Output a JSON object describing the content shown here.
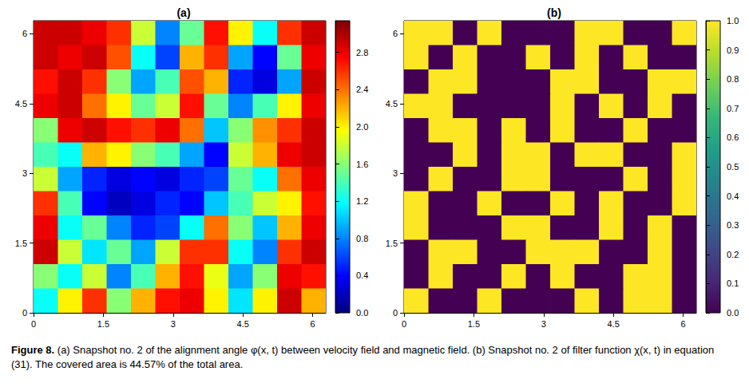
{
  "chart_data": [
    {
      "type": "heatmap",
      "title": "(a)",
      "color": "jet",
      "xlim": [
        0,
        6.283
      ],
      "ylim": [
        0,
        6.283
      ],
      "xticks": [
        0,
        1.5,
        3,
        4.5,
        6
      ],
      "yticks": [
        0,
        1.5,
        3,
        4.5,
        6
      ],
      "x_edges": [
        0,
        0.524,
        1.047,
        1.571,
        2.094,
        2.618,
        3.142,
        3.665,
        4.189,
        4.712,
        5.236,
        5.76,
        6.283
      ],
      "y_edges": [
        0,
        0.524,
        1.047,
        1.571,
        2.094,
        2.618,
        3.142,
        3.665,
        4.189,
        4.712,
        5.236,
        5.76,
        6.283
      ],
      "cells": [
        [
          2.9,
          2.9,
          2.8,
          2.6,
          1.8,
          0.8,
          1.5,
          2.7,
          2.0,
          1.2,
          2.6,
          2.9
        ],
        [
          2.9,
          2.8,
          2.9,
          2.5,
          1.2,
          0.6,
          2.2,
          2.6,
          0.9,
          0.4,
          1.5,
          2.8
        ],
        [
          2.7,
          2.9,
          2.6,
          1.6,
          0.9,
          1.4,
          2.5,
          2.2,
          0.5,
          0.3,
          0.9,
          2.9
        ],
        [
          2.8,
          2.9,
          2.4,
          2.0,
          1.5,
          1.8,
          2.7,
          1.5,
          0.8,
          1.4,
          2.0,
          2.8
        ],
        [
          1.6,
          2.8,
          2.9,
          2.7,
          2.6,
          2.8,
          2.4,
          1.0,
          1.6,
          2.3,
          2.6,
          2.9
        ],
        [
          1.4,
          1.2,
          2.2,
          2.0,
          1.6,
          1.4,
          0.9,
          0.4,
          1.8,
          2.2,
          2.8,
          2.9
        ],
        [
          1.8,
          0.9,
          0.5,
          0.3,
          0.4,
          0.3,
          0.5,
          0.6,
          1.5,
          1.2,
          2.4,
          2.8
        ],
        [
          2.6,
          1.4,
          0.4,
          0.2,
          0.3,
          0.5,
          0.4,
          1.0,
          1.4,
          1.8,
          2.0,
          2.7
        ],
        [
          2.8,
          1.2,
          1.5,
          0.8,
          0.5,
          0.6,
          1.2,
          2.4,
          1.6,
          1.0,
          2.2,
          2.8
        ],
        [
          2.9,
          1.8,
          1.1,
          1.5,
          0.9,
          1.8,
          2.6,
          2.6,
          1.2,
          0.8,
          2.6,
          2.9
        ],
        [
          1.6,
          1.2,
          1.8,
          0.8,
          1.4,
          2.2,
          2.7,
          1.9,
          0.9,
          1.6,
          2.8,
          2.7
        ],
        [
          1.2,
          2.0,
          2.6,
          1.6,
          2.2,
          2.7,
          2.8,
          2.0,
          1.1,
          2.0,
          2.9,
          2.2
        ]
      ],
      "colorbar": {
        "range": [
          0,
          3.14
        ],
        "ticks": [
          {
            "value": 0,
            "label": "0.0"
          },
          0.4,
          0.8,
          1.2,
          1.6,
          {
            "value": 2,
            "label": "2.0"
          },
          2.4,
          2.8
        ]
      }
    },
    {
      "type": "heatmap",
      "title": "(b)",
      "color": "viridis",
      "xlim": [
        0,
        6.283
      ],
      "ylim": [
        0,
        6.283
      ],
      "xticks": [
        0,
        1.5,
        3,
        4.5,
        6
      ],
      "yticks": [
        0,
        1.5,
        3,
        4.5,
        6
      ],
      "x_edges": [
        0,
        0.524,
        1.047,
        1.571,
        2.094,
        2.618,
        3.142,
        3.665,
        4.189,
        4.712,
        5.236,
        5.76,
        6.283
      ],
      "y_edges": [
        0,
        0.524,
        1.047,
        1.571,
        2.094,
        2.618,
        3.142,
        3.665,
        4.189,
        4.712,
        5.236,
        5.76,
        6.283
      ],
      "cells": [
        [
          1,
          1,
          0,
          1,
          0,
          0,
          0,
          1,
          1,
          0,
          0,
          1
        ],
        [
          1,
          0,
          1,
          0,
          0,
          1,
          0,
          1,
          0,
          1,
          0,
          0
        ],
        [
          0,
          1,
          1,
          0,
          0,
          0,
          1,
          1,
          0,
          0,
          1,
          1
        ],
        [
          1,
          1,
          0,
          0,
          0,
          0,
          1,
          0,
          1,
          0,
          1,
          0
        ],
        [
          0,
          1,
          1,
          0,
          1,
          0,
          1,
          0,
          0,
          1,
          0,
          0
        ],
        [
          0,
          0,
          1,
          0,
          1,
          1,
          0,
          1,
          1,
          0,
          0,
          1
        ],
        [
          0,
          1,
          0,
          0,
          1,
          1,
          0,
          0,
          0,
          1,
          0,
          1
        ],
        [
          1,
          0,
          0,
          1,
          0,
          0,
          1,
          0,
          1,
          0,
          0,
          1
        ],
        [
          1,
          0,
          0,
          0,
          1,
          1,
          0,
          0,
          1,
          0,
          1,
          0
        ],
        [
          0,
          1,
          1,
          0,
          0,
          1,
          1,
          1,
          0,
          0,
          1,
          0
        ],
        [
          0,
          1,
          0,
          0,
          1,
          0,
          1,
          0,
          0,
          1,
          1,
          0
        ],
        [
          1,
          0,
          0,
          1,
          0,
          0,
          0,
          1,
          0,
          1,
          1,
          0
        ]
      ],
      "colorbar": {
        "range": [
          0,
          1
        ],
        "ticks": [
          {
            "value": 0,
            "label": "0.0"
          },
          0.1,
          0.2,
          0.3,
          0.4,
          0.5,
          0.6,
          0.7,
          0.8,
          0.9,
          {
            "value": 1,
            "label": "1.0"
          }
        ]
      }
    }
  ],
  "caption": {
    "label": "Figure 8.",
    "text": "(a) Snapshot no. 2 of the alignment angle φ(x, t) between velocity field and magnetic field. (b) Snapshot no. 2 of filter function χ(x, t) in equation (31). The covered area is 44.57% of the total area."
  }
}
